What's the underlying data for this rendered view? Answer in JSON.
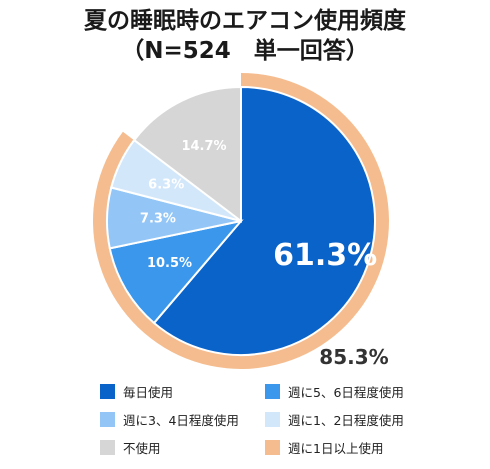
{
  "chart_data": {
    "type": "pie",
    "title": "夏の睡眠時のエアコン使用頻度",
    "subtitle": "（N=524　単一回答）",
    "slices": [
      {
        "name": "毎日使用",
        "value": 61.3,
        "label": "61.3%",
        "color": "#0a63c9"
      },
      {
        "name": "週に5、6日程度使用",
        "value": 10.5,
        "label": "10.5%",
        "color": "#3a97ec"
      },
      {
        "name": "週に3、4日程度使用",
        "value": 7.3,
        "label": "7.3%",
        "color": "#93c6f6"
      },
      {
        "name": "週に1、2日程度使用",
        "value": 6.3,
        "label": "6.3%",
        "color": "#d3e7fb"
      },
      {
        "name": "不使用",
        "value": 14.7,
        "label": "14.7%",
        "color": "#d6d6d6"
      }
    ],
    "aggregate": {
      "name": "週に1日以上使用",
      "value": 85.3,
      "label": "85.3%",
      "color": "#f5bd8f"
    },
    "legend": [
      {
        "label": "毎日使用",
        "color": "#0a63c9"
      },
      {
        "label": "週に5、6日程度使用",
        "color": "#3a97ec"
      },
      {
        "label": "週に3、4日程度使用",
        "color": "#93c6f6"
      },
      {
        "label": "週に1、2日程度使用",
        "color": "#d3e7fb"
      },
      {
        "label": "不使用",
        "color": "#d6d6d6"
      },
      {
        "label": "週に1日以上使用",
        "color": "#f5bd8f"
      }
    ],
    "legend_placement": "bottom"
  }
}
